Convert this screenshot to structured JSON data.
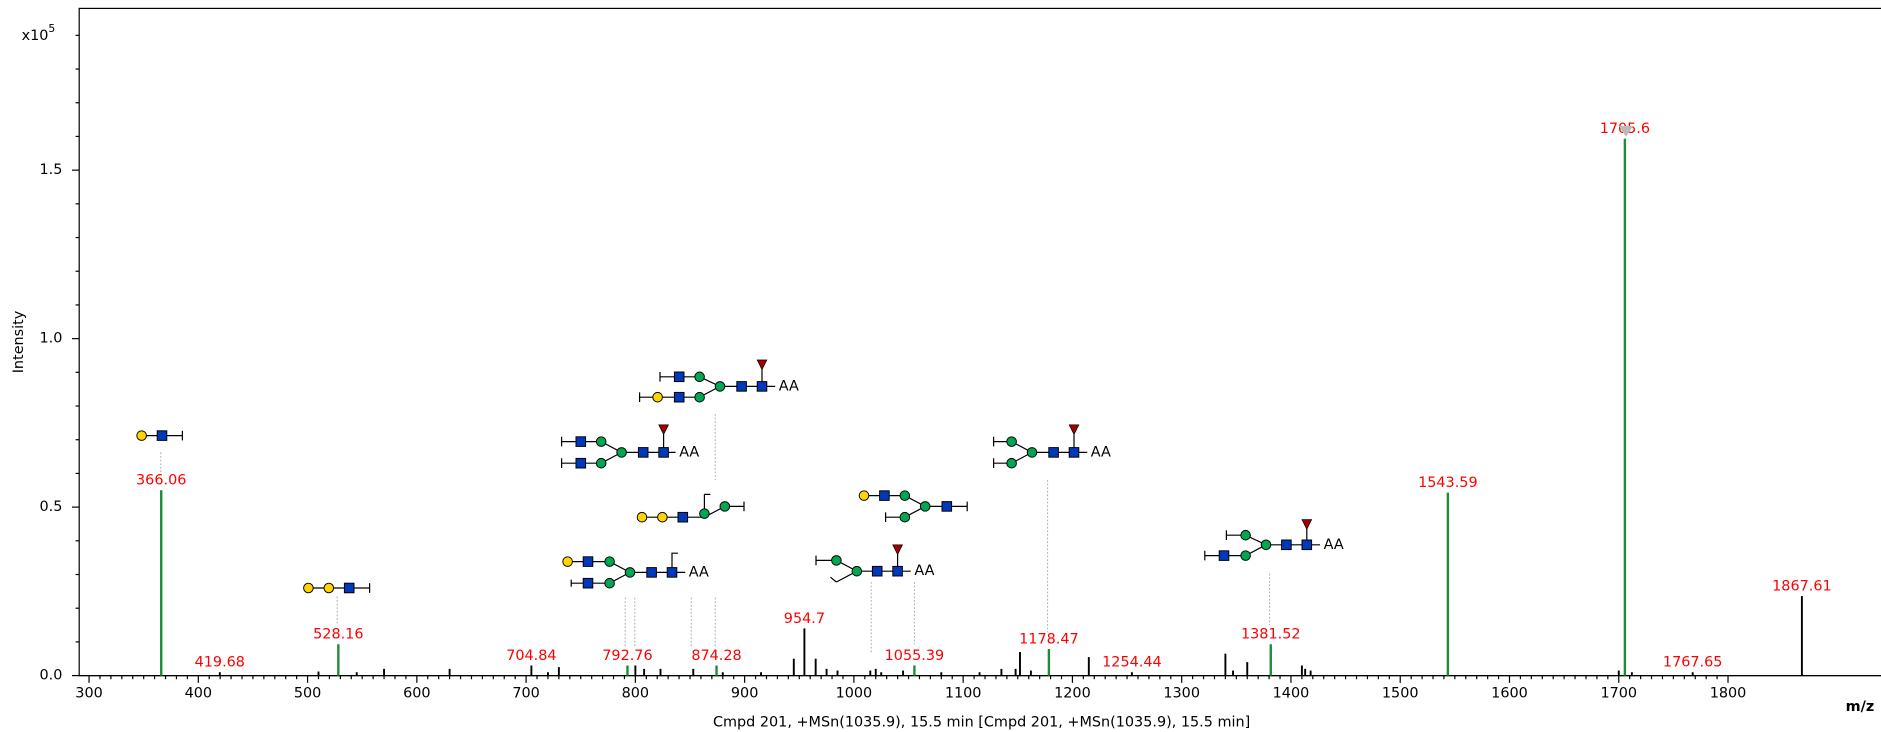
{
  "chart_data": {
    "type": "bar",
    "y_multiplier": "x10",
    "y_exponent": "5",
    "y_label": "Intensity",
    "x_label": "m/z",
    "caption": "Cmpd 201, +MSn(1035.9), 15.5 min [Cmpd 201, +MSn(1035.9), 15.5 min]",
    "glycan_end_label": "AA",
    "label_color": "#ff0000",
    "xlim": [
      291,
      1940
    ],
    "ylim": [
      0,
      1.98
    ],
    "xticks": [
      300,
      400,
      500,
      600,
      700,
      800,
      900,
      1000,
      1100,
      1200,
      1300,
      1400,
      1500,
      1600,
      1700,
      1800
    ],
    "yticks": [
      {
        "value": 0,
        "label": "0.0"
      },
      0.5,
      {
        "value": 1,
        "label": "1.0"
      },
      1.5
    ],
    "series": [
      {
        "color": "#1e8c3a",
        "labeled": true,
        "x": [
          366.06,
          528.16,
          792.76,
          874.28,
          1055.39,
          1178.47,
          1381.52,
          1543.59,
          1705.6
        ],
        "values": [
          0.55,
          0.093,
          0.03,
          0.03,
          0.03,
          0.079,
          0.093,
          0.543,
          1.593
        ]
      },
      {
        "color": "#000000",
        "labeled": true,
        "x": [
          419.68,
          704.84,
          954.7,
          1254.44,
          1767.65,
          1867.61
        ],
        "values": [
          0.01,
          0.03,
          0.14,
          0.01,
          0.01,
          0.236
        ]
      },
      {
        "color": "#000000",
        "labeled": false,
        "x": [
          510,
          545,
          570,
          630,
          720,
          730,
          800,
          808,
          823,
          853,
          880,
          915,
          945,
          965,
          975,
          985,
          1015,
          1020,
          1025,
          1045,
          1080,
          1115,
          1135,
          1148,
          1152,
          1162,
          1215,
          1340,
          1347,
          1360,
          1410,
          1413,
          1418,
          1700,
          1712
        ],
        "values": [
          0.012,
          0.01,
          0.02,
          0.02,
          0.01,
          0.025,
          0.03,
          0.02,
          0.02,
          0.02,
          0.01,
          0.01,
          0.05,
          0.05,
          0.02,
          0.015,
          0.015,
          0.02,
          0.01,
          0.015,
          0.01,
          0.01,
          0.02,
          0.02,
          0.07,
          0.015,
          0.055,
          0.065,
          0.015,
          0.04,
          0.03,
          0.02,
          0.015,
          0.015,
          0.01
        ]
      }
    ]
  }
}
